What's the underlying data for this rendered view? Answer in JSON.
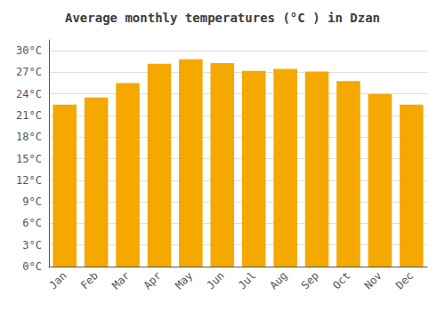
{
  "chart_data": {
    "type": "bar",
    "title": "Average monthly temperatures (°C ) in Dzan",
    "categories": [
      "Jan",
      "Feb",
      "Mar",
      "Apr",
      "May",
      "Jun",
      "Jul",
      "Aug",
      "Sep",
      "Oct",
      "Nov",
      "Dec"
    ],
    "values": [
      22.5,
      23.5,
      25.5,
      28.2,
      28.8,
      28.3,
      27.2,
      27.5,
      27.1,
      25.8,
      24.0,
      22.5
    ],
    "color": "#F5A800",
    "ylim": [
      0,
      31.5
    ],
    "yticks": [
      {
        "value": 0,
        "label": "0°C"
      },
      {
        "value": 3,
        "label": "3°C"
      },
      {
        "value": 6,
        "label": "6°C"
      },
      {
        "value": 9,
        "label": "9°C"
      },
      {
        "value": 12,
        "label": "12°C"
      },
      {
        "value": 15,
        "label": "15°C"
      },
      {
        "value": 18,
        "label": "18°C"
      },
      {
        "value": 21,
        "label": "21°C"
      },
      {
        "value": 24,
        "label": "24°C"
      },
      {
        "value": 27,
        "label": "27°C"
      },
      {
        "value": 30,
        "label": "30°C"
      }
    ],
    "grid": true
  }
}
